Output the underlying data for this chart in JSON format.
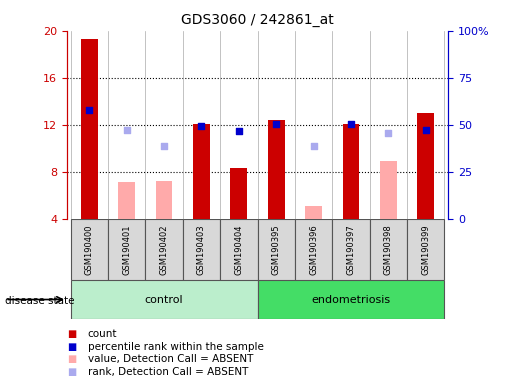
{
  "title": "GDS3060 / 242861_at",
  "samples": [
    "GSM190400",
    "GSM190401",
    "GSM190402",
    "GSM190403",
    "GSM190404",
    "GSM190395",
    "GSM190396",
    "GSM190397",
    "GSM190398",
    "GSM190399"
  ],
  "groups": {
    "control": [
      0,
      1,
      2,
      3,
      4
    ],
    "endometriosis": [
      5,
      6,
      7,
      8,
      9
    ]
  },
  "red_bars": [
    19.3,
    null,
    null,
    12.1,
    8.3,
    12.4,
    null,
    12.1,
    null,
    13.0
  ],
  "pink_bars": [
    null,
    7.1,
    7.2,
    null,
    null,
    null,
    5.1,
    null,
    8.9,
    null
  ],
  "blue_squares": [
    13.3,
    null,
    null,
    11.9,
    11.5,
    12.1,
    null,
    12.1,
    null,
    11.6
  ],
  "lavender_squares": [
    null,
    11.6,
    10.2,
    null,
    null,
    null,
    10.2,
    null,
    11.3,
    null
  ],
  "ylim_left": [
    4,
    20
  ],
  "ylim_right": [
    0,
    100
  ],
  "yticks_left": [
    4,
    8,
    12,
    16,
    20
  ],
  "yticks_right": [
    0,
    25,
    50,
    75,
    100
  ],
  "yticklabels_right": [
    "0",
    "25",
    "50",
    "75",
    "100%"
  ],
  "left_color": "#cc0000",
  "right_color": "#0000cc",
  "red_bar_color": "#cc0000",
  "pink_bar_color": "#ffaaaa",
  "blue_sq_color": "#0000cc",
  "lavender_sq_color": "#aaaaee",
  "ctrl_color": "#bbeecc",
  "endo_color": "#44dd66",
  "legend_items": [
    {
      "color": "#cc0000",
      "label": "count"
    },
    {
      "color": "#0000cc",
      "label": "percentile rank within the sample"
    },
    {
      "color": "#ffaaaa",
      "label": "value, Detection Call = ABSENT"
    },
    {
      "color": "#aaaaee",
      "label": "rank, Detection Call = ABSENT"
    }
  ],
  "bar_width": 0.45,
  "sq_size": 25,
  "chart_bg": "#ffffff",
  "label_bg": "#d8d8d8"
}
